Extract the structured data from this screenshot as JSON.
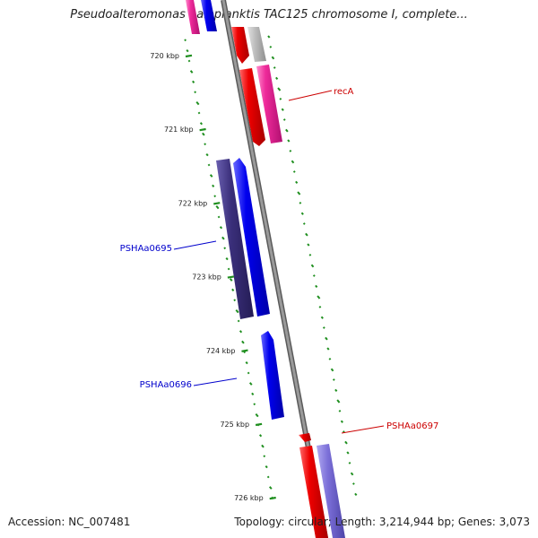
{
  "header": {
    "title": "Pseudoalteromonas haloplanktis TAC125 chromosome I, complete..."
  },
  "footer": {
    "accession": "Accession: NC_007481",
    "topology": "Topology: circular; Length: 3,214,944 bp; Genes: 3,073"
  },
  "ruler": {
    "ticks": [
      "720 kbp",
      "721 kbp",
      "722 kbp",
      "723 kbp",
      "724 kbp",
      "725 kbp",
      "726 kbp"
    ]
  },
  "genes": {
    "recA": "recA",
    "PSHAa0695": "PSHAa0695",
    "PSHAa0696": "PSHAa0696",
    "PSHAa0697": "PSHAa0697"
  },
  "colors": {
    "backbone": "#8a8a8a",
    "forward_cds": "#0000ee",
    "reverse_cds": "#ee0000",
    "magenta_feature": "#ee2a9a",
    "dark_feature": "#3a2f7a",
    "light_blue_feature": "#7b6fd8",
    "gc_skew_dash": "#1f8f1f",
    "label_blue": "#0000cc",
    "label_red": "#cc0000"
  }
}
